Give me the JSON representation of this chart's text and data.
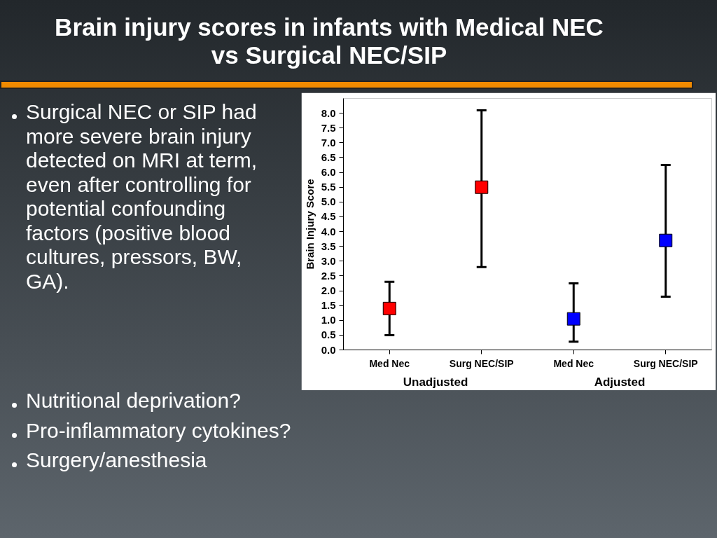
{
  "chart_data": {
    "type": "scatter",
    "title": "Brain injury scores in infants with Medical NEC vs Surgical NEC/SIP",
    "ylabel": "Brain Injury Score",
    "categories": [
      "Med Nec",
      "Surg NEC/SIP",
      "Med Nec",
      "Surg NEC/SIP"
    ],
    "series": [
      {
        "color": "#ff0000",
        "values": [
          1.4,
          5.5,
          null,
          null
        ],
        "errors": [
          [
            0.5,
            2.3
          ],
          [
            2.8,
            8.1
          ],
          null,
          null
        ]
      },
      {
        "color": "#0000ff",
        "values": [
          null,
          null,
          1.05,
          3.7
        ],
        "errors": [
          null,
          null,
          [
            0.28,
            2.25
          ],
          [
            1.8,
            6.25
          ]
        ]
      }
    ],
    "marker": "square",
    "grid": false,
    "ylim": [
      0,
      8.5
    ],
    "yticks": [
      {
        "value": 0,
        "label": "0.0"
      },
      {
        "value": 0.5,
        "label": "0.5"
      },
      {
        "value": 1,
        "label": "1.0"
      },
      {
        "value": 1.5,
        "label": "1.5"
      },
      {
        "value": 2,
        "label": "2.0"
      },
      {
        "value": 2.5,
        "label": "2.5"
      },
      {
        "value": 3,
        "label": "3.0"
      },
      {
        "value": 3.5,
        "label": "3.5"
      },
      {
        "value": 4,
        "label": "4.0"
      },
      {
        "value": 4.5,
        "label": "4.5"
      },
      {
        "value": 5,
        "label": "5.0"
      },
      {
        "value": 5.5,
        "label": "5.5"
      },
      {
        "value": 6,
        "label": "6.0"
      },
      {
        "value": 6.5,
        "label": "6.5"
      },
      {
        "value": 7,
        "label": "7.0"
      },
      {
        "value": 7.5,
        "label": "7.5"
      },
      {
        "value": 8,
        "label": "8.0"
      }
    ],
    "annotations": [
      "Surgical NEC or SIP had more severe brain injury detected on MRI at term, even after controlling for potential confounding factors (positive blood cultures, pressors, BW, GA).",
      "Nutritional deprivation?",
      "Pro-inflammatory cytokines?",
      "Surgery/anesthesia",
      {
        "text": "Unadjusted"
      },
      {
        "text": "Adjusted"
      }
    ]
  }
}
